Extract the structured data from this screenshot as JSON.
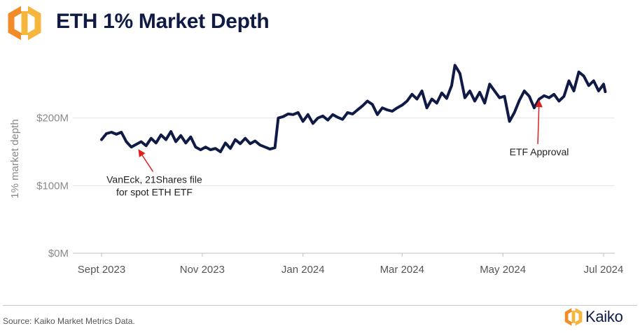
{
  "header": {
    "title": "ETH 1% Market Depth",
    "logo_icon": "kaiko-hexagon-icon",
    "logo_colors": [
      "#f28c28",
      "#f6b63c"
    ]
  },
  "chart_data": {
    "type": "line",
    "title": "ETH 1% Market Depth",
    "ylabel": "1% market depth",
    "xlabel": "",
    "ylim": [
      0,
      300
    ],
    "yunit": "$M",
    "xlim": [
      "2023-09-01",
      "2024-07-01"
    ],
    "y_ticks": [
      {
        "value": 0,
        "label": "$0M"
      },
      {
        "value": 100,
        "label": "$100M"
      },
      {
        "value": 200,
        "label": "$200M"
      }
    ],
    "x_ticks": [
      {
        "date": "2023-09-01",
        "label": "Sept 2023"
      },
      {
        "date": "2023-11-01",
        "label": "Nov 2023"
      },
      {
        "date": "2024-01-01",
        "label": "Jan 2024"
      },
      {
        "date": "2024-03-01",
        "label": "Mar 2024"
      },
      {
        "date": "2024-05-01",
        "label": "May 2024"
      },
      {
        "date": "2024-07-01",
        "label": "Jul 2024"
      }
    ],
    "grid": "horizontal",
    "line_color": "#0f1a45",
    "series": [
      {
        "points": [
          [
            "2023-09-01",
            168
          ],
          [
            "2023-09-04",
            177
          ],
          [
            "2023-09-07",
            179
          ],
          [
            "2023-09-10",
            176
          ],
          [
            "2023-09-13",
            179
          ],
          [
            "2023-09-16",
            165
          ],
          [
            "2023-09-19",
            157
          ],
          [
            "2023-09-22",
            161
          ],
          [
            "2023-09-25",
            165
          ],
          [
            "2023-09-28",
            159
          ],
          [
            "2023-10-01",
            170
          ],
          [
            "2023-10-04",
            163
          ],
          [
            "2023-10-07",
            175
          ],
          [
            "2023-10-10",
            168
          ],
          [
            "2023-10-13",
            180
          ],
          [
            "2023-10-16",
            165
          ],
          [
            "2023-10-19",
            174
          ],
          [
            "2023-10-22",
            163
          ],
          [
            "2023-10-25",
            172
          ],
          [
            "2023-10-28",
            157
          ],
          [
            "2023-10-31",
            153
          ],
          [
            "2023-11-03",
            157
          ],
          [
            "2023-11-06",
            153
          ],
          [
            "2023-11-09",
            155
          ],
          [
            "2023-11-12",
            150
          ],
          [
            "2023-11-15",
            163
          ],
          [
            "2023-11-18",
            155
          ],
          [
            "2023-11-21",
            168
          ],
          [
            "2023-11-24",
            162
          ],
          [
            "2023-11-27",
            170
          ],
          [
            "2023-11-30",
            162
          ],
          [
            "2023-12-03",
            166
          ],
          [
            "2023-12-06",
            160
          ],
          [
            "2023-12-09",
            157
          ],
          [
            "2023-12-12",
            154
          ],
          [
            "2023-12-15",
            156
          ],
          [
            "2023-12-17",
            200
          ],
          [
            "2023-12-20",
            202
          ],
          [
            "2023-12-23",
            206
          ],
          [
            "2023-12-26",
            205
          ],
          [
            "2023-12-29",
            208
          ],
          [
            "2024-01-01",
            195
          ],
          [
            "2024-01-04",
            205
          ],
          [
            "2024-01-07",
            192
          ],
          [
            "2024-01-10",
            200
          ],
          [
            "2024-01-13",
            203
          ],
          [
            "2024-01-16",
            197
          ],
          [
            "2024-01-19",
            205
          ],
          [
            "2024-01-22",
            201
          ],
          [
            "2024-01-25",
            198
          ],
          [
            "2024-01-28",
            208
          ],
          [
            "2024-01-31",
            206
          ],
          [
            "2024-02-03",
            212
          ],
          [
            "2024-02-06",
            218
          ],
          [
            "2024-02-09",
            225
          ],
          [
            "2024-02-12",
            220
          ],
          [
            "2024-02-15",
            205
          ],
          [
            "2024-02-18",
            215
          ],
          [
            "2024-02-21",
            212
          ],
          [
            "2024-02-24",
            210
          ],
          [
            "2024-02-27",
            215
          ],
          [
            "2024-03-01",
            219
          ],
          [
            "2024-03-04",
            225
          ],
          [
            "2024-03-07",
            235
          ],
          [
            "2024-03-10",
            228
          ],
          [
            "2024-03-13",
            240
          ],
          [
            "2024-03-16",
            215
          ],
          [
            "2024-03-19",
            228
          ],
          [
            "2024-03-22",
            222
          ],
          [
            "2024-03-25",
            237
          ],
          [
            "2024-03-28",
            229
          ],
          [
            "2024-03-31",
            248
          ],
          [
            "2024-04-02",
            278
          ],
          [
            "2024-04-05",
            266
          ],
          [
            "2024-04-08",
            230
          ],
          [
            "2024-04-11",
            240
          ],
          [
            "2024-04-14",
            225
          ],
          [
            "2024-04-17",
            238
          ],
          [
            "2024-04-20",
            222
          ],
          [
            "2024-04-23",
            250
          ],
          [
            "2024-04-26",
            240
          ],
          [
            "2024-04-29",
            230
          ],
          [
            "2024-05-02",
            232
          ],
          [
            "2024-05-05",
            195
          ],
          [
            "2024-05-08",
            208
          ],
          [
            "2024-05-11",
            226
          ],
          [
            "2024-05-14",
            240
          ],
          [
            "2024-05-17",
            232
          ],
          [
            "2024-05-20",
            215
          ],
          [
            "2024-05-23",
            228
          ],
          [
            "2024-05-26",
            233
          ],
          [
            "2024-05-29",
            230
          ],
          [
            "2024-06-01",
            235
          ],
          [
            "2024-06-04",
            225
          ],
          [
            "2024-06-07",
            232
          ],
          [
            "2024-06-10",
            255
          ],
          [
            "2024-06-13",
            240
          ],
          [
            "2024-06-16",
            268
          ],
          [
            "2024-06-19",
            262
          ],
          [
            "2024-06-22",
            248
          ],
          [
            "2024-06-25",
            255
          ],
          [
            "2024-06-28",
            240
          ],
          [
            "2024-07-01",
            250
          ],
          [
            "2024-07-02",
            239
          ]
        ]
      }
    ],
    "annotations": [
      {
        "text": [
          "VanEck, 21Shares file",
          "for spot ETH ETF"
        ],
        "date": "2023-09-22",
        "value": 158,
        "label_date": "2023-10-03",
        "label_value": 100,
        "arrow_color": "#e02020"
      },
      {
        "text": [
          "ETF Approval"
        ],
        "date": "2024-05-23",
        "value": 232,
        "label_date": "2024-05-23",
        "label_value": 150,
        "arrow_color": "#e02020"
      }
    ]
  },
  "footer": {
    "source": "Source: Kaiko Market Metrics Data.",
    "brand": "Kaiko",
    "brand_icon": "kaiko-hexagon-icon"
  }
}
